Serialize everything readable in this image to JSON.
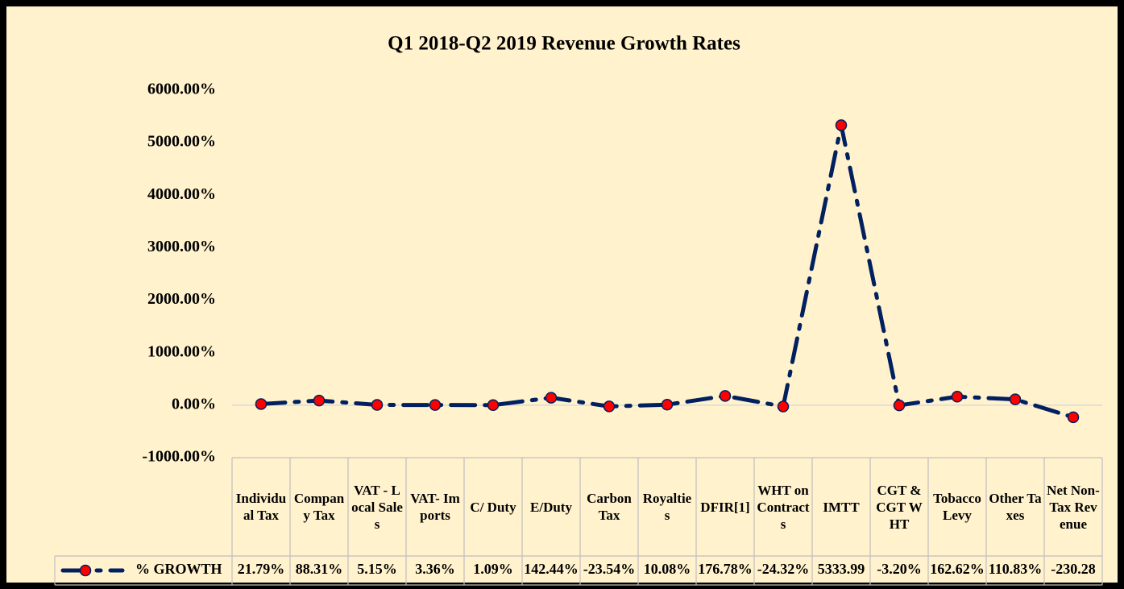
{
  "chart_data": {
    "type": "line",
    "title": "Q1 2018-Q2 2019 Revenue Growth Rates",
    "categories": [
      "Individual Tax",
      "Company Tax",
      "VAT - Local Sales",
      "VAT- Imports",
      "C/ Duty",
      "E/Duty",
      "Carbon Tax",
      "Royalties",
      "DFIR[1]",
      "WHT on Contracts",
      "IMTT",
      "CGT & CGT WHT",
      "Tobacco Levy",
      "Other Taxes",
      "Net Non-Tax Revenue"
    ],
    "series": [
      {
        "name": "% GROWTH",
        "color": "#002060",
        "marker_color": "#ff0000",
        "values": [
          21.79,
          88.31,
          5.15,
          3.36,
          1.09,
          142.44,
          -23.54,
          10.08,
          176.78,
          -24.32,
          5333.99,
          -3.2,
          162.62,
          110.83,
          -230.28
        ],
        "value_labels": [
          "21.79%",
          "88.31%",
          "5.15%",
          "3.36%",
          "1.09%",
          "142.44%",
          "-23.54%",
          "10.08%",
          "176.78%",
          "-24.32%",
          "5333.99",
          "-3.20%",
          "162.62%",
          "110.83%",
          "-230.28"
        ]
      }
    ],
    "ylim": [
      -1000,
      6000
    ],
    "yticks": [
      {
        "value": -1000,
        "label": "-1000.00%"
      },
      {
        "value": 0,
        "label": "0.00%"
      },
      {
        "value": 1000,
        "label": "1000.00%"
      },
      {
        "value": 2000,
        "label": "2000.00%"
      },
      {
        "value": 3000,
        "label": "3000.00%"
      },
      {
        "value": 4000,
        "label": "4000.00%"
      },
      {
        "value": 5000,
        "label": "5000.00%"
      },
      {
        "value": 6000,
        "label": "6000.00%"
      }
    ],
    "grid": false
  }
}
